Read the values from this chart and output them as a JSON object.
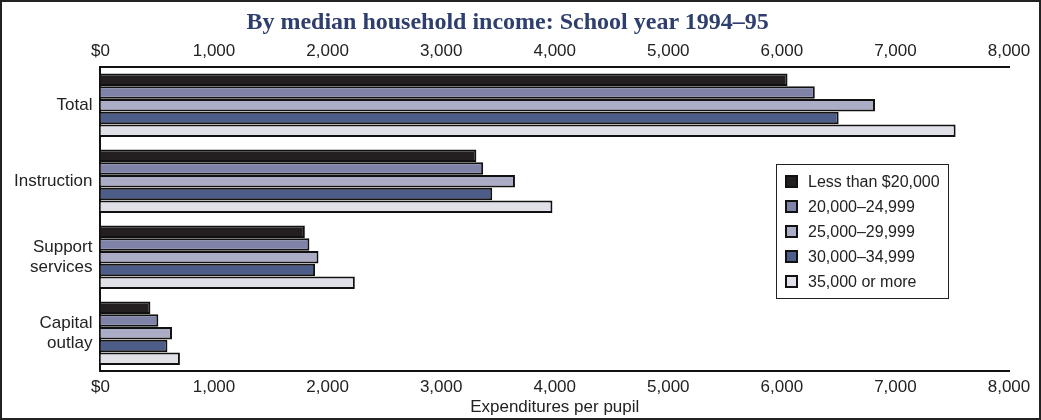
{
  "chart_data": {
    "type": "bar",
    "orientation": "horizontal",
    "title": "By median household income: School year 1994–95",
    "xlabel": "Expenditures per pupil",
    "categories": [
      "Total",
      "Instruction",
      "Support services",
      "Capital outlay"
    ],
    "series": [
      {
        "name": "Less than $20,000",
        "color": "#231f20",
        "values": [
          6050,
          3310,
          1800,
          440
        ]
      },
      {
        "name": "20,000–24,999",
        "color": "#8083a8",
        "values": [
          6290,
          3370,
          1840,
          510
        ]
      },
      {
        "name": "25,000–29,999",
        "color": "#abadc6",
        "values": [
          6820,
          3650,
          1920,
          630
        ]
      },
      {
        "name": "30,000–34,999",
        "color": "#4d5d8a",
        "values": [
          6500,
          3450,
          1890,
          590
        ]
      },
      {
        "name": "35,000 or more",
        "color": "#e0e0e8",
        "values": [
          7530,
          3980,
          2240,
          700
        ]
      }
    ],
    "xlim": [
      0,
      8000
    ],
    "xticks": [
      {
        "value": 0,
        "label": "$0"
      },
      {
        "value": 1000,
        "label": "1,000"
      },
      {
        "value": 2000,
        "label": "2,000"
      },
      {
        "value": 3000,
        "label": "3,000"
      },
      {
        "value": 4000,
        "label": "4,000"
      },
      {
        "value": 5000,
        "label": "5,000"
      },
      {
        "value": 6000,
        "label": "6,000"
      },
      {
        "value": 7000,
        "label": "7,000"
      },
      {
        "value": 8000,
        "label": "8,000"
      }
    ],
    "x2lim": [
      0,
      8000
    ],
    "x2ticks": [
      {
        "value": 0,
        "label": "$0"
      },
      {
        "value": 1000,
        "label": "1,000"
      },
      {
        "value": 2000,
        "label": "2,000"
      },
      {
        "value": 3000,
        "label": "3,000"
      },
      {
        "value": 4000,
        "label": "4,000"
      },
      {
        "value": 5000,
        "label": "5,000"
      },
      {
        "value": 6000,
        "label": "6,000"
      },
      {
        "value": 7000,
        "label": "7,000"
      },
      {
        "value": 8000,
        "label": "8,000"
      }
    ],
    "grid": false,
    "legend": "right"
  }
}
